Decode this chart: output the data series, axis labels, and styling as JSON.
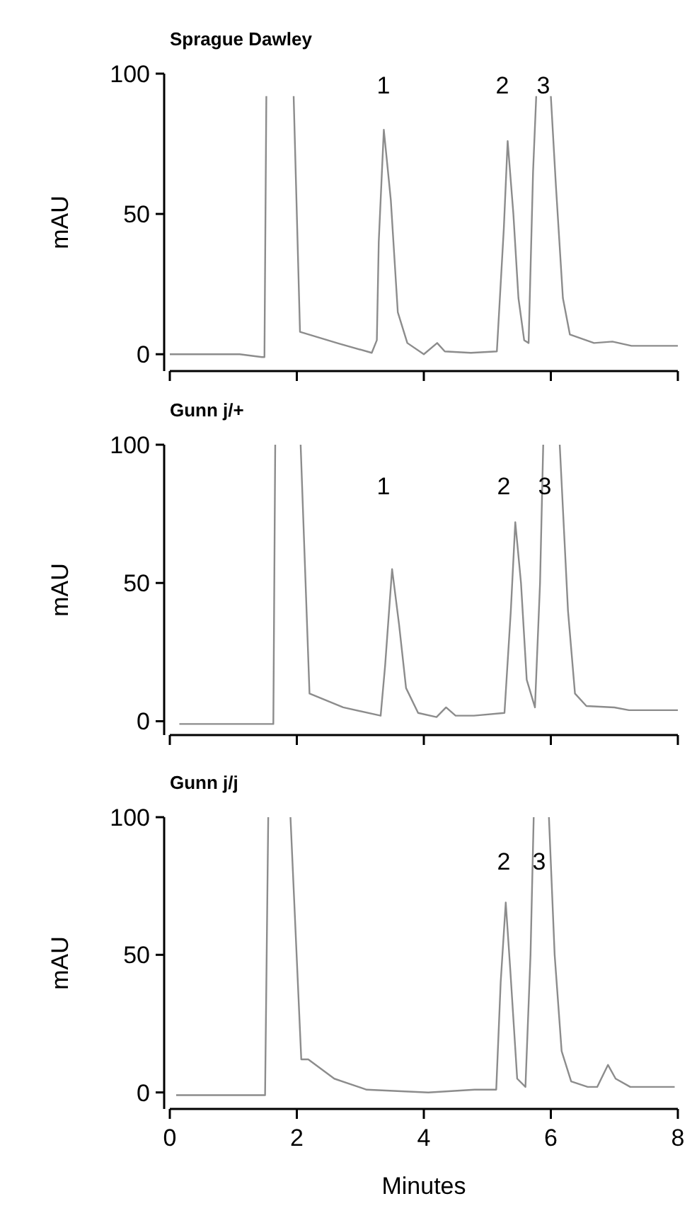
{
  "chart_data": [
    {
      "type": "line",
      "title": "Sprague Dawley",
      "ylabel": "mAU",
      "xlim": [
        0,
        8
      ],
      "xticks": [
        0,
        2,
        4,
        6,
        8
      ],
      "ylim": [
        -6,
        100
      ],
      "yticks": [
        0,
        50,
        100
      ],
      "tick_labels": "y",
      "grid": false,
      "marker": "none",
      "line_style": "solid",
      "series": [
        {
          "color": "#8c8c8c",
          "x": [
            0,
            1.1,
            1.45,
            1.49,
            1.52,
            1.9,
            1.95,
            2.05,
            2.66,
            3.18,
            3.26,
            3.29,
            3.37,
            3.48,
            3.59,
            3.74,
            4.0,
            4.21,
            4.33,
            4.74,
            5.15,
            5.26,
            5.32,
            5.41,
            5.49,
            5.58,
            5.65,
            5.72,
            5.77,
            5.9,
            6.0,
            6.08,
            6.19,
            6.3,
            6.68,
            6.97,
            7.27,
            8.0
          ],
          "values": [
            0,
            0,
            -1,
            -1,
            92,
            null,
            92,
            8,
            3.8,
            0.5,
            5,
            40,
            80,
            55,
            15,
            4,
            0,
            4,
            1,
            0.5,
            1,
            45,
            76,
            50,
            20,
            5,
            4,
            65,
            92,
            null,
            92,
            60,
            20,
            7,
            4,
            4.5,
            3,
            3
          ]
        }
      ],
      "annotations": [
        "1",
        "2",
        "3"
      ]
    },
    {
      "type": "line",
      "title": "Gunn j/+",
      "ylabel": "mAU",
      "xlim": [
        0,
        8
      ],
      "xticks": [
        0,
        2,
        4,
        6,
        8
      ],
      "ylim": [
        -5,
        100
      ],
      "yticks": [
        0,
        50,
        100
      ],
      "tick_labels": "y",
      "grid": false,
      "marker": "none",
      "line_style": "solid",
      "series": [
        {
          "color": "#8c8c8c",
          "x": [
            0.15,
            1.63,
            1.66,
            1.8,
            2.06,
            2.2,
            2.73,
            3.32,
            3.39,
            3.5,
            3.61,
            3.72,
            3.91,
            4.2,
            4.35,
            4.5,
            4.79,
            5.27,
            5.37,
            5.44,
            5.53,
            5.62,
            5.75,
            5.83,
            5.88,
            6.0,
            6.14,
            6.27,
            6.38,
            6.56,
            7.0,
            7.23,
            8.0
          ],
          "values": [
            -1,
            -1,
            100,
            null,
            100,
            10,
            5,
            2,
            20,
            55,
            35,
            12,
            3,
            1.5,
            5,
            2,
            2,
            3,
            40,
            72,
            50,
            15,
            5,
            50,
            100,
            null,
            100,
            40,
            10,
            5.5,
            5,
            4,
            4
          ]
        }
      ],
      "annotations": [
        "1",
        "2",
        "3"
      ]
    },
    {
      "type": "line",
      "title": "Gunn j/j",
      "ylabel": "mAU",
      "xlabel": "Minutes",
      "xlim": [
        0,
        8
      ],
      "xticks": [
        0,
        2,
        4,
        6,
        8
      ],
      "ylim": [
        -6,
        100
      ],
      "yticks": [
        0,
        50,
        100
      ],
      "grid": false,
      "marker": "none",
      "line_style": "solid",
      "series": [
        {
          "color": "#8c8c8c",
          "x": [
            0.1,
            1.5,
            1.55,
            1.7,
            1.9,
            2.07,
            2.18,
            2.59,
            3.1,
            4.07,
            4.8,
            5.14,
            5.21,
            5.29,
            5.36,
            5.47,
            5.6,
            5.68,
            5.73,
            5.85,
            5.97,
            6.06,
            6.17,
            6.32,
            6.58,
            6.73,
            6.9,
            7.02,
            7.25,
            7.95
          ],
          "values": [
            -1,
            -1,
            100,
            null,
            100,
            12,
            12,
            5,
            1,
            0,
            1,
            1,
            40,
            69,
            45,
            5,
            2,
            50,
            100,
            null,
            100,
            50,
            15,
            4,
            2,
            2,
            10,
            5,
            2,
            2
          ]
        }
      ],
      "annotations": [
        "2",
        "3"
      ]
    }
  ]
}
